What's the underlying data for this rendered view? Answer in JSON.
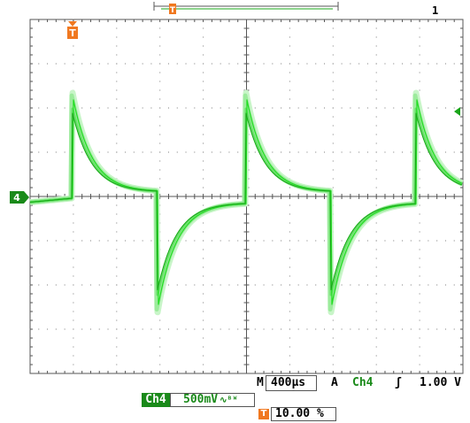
{
  "display": {
    "colors": {
      "trace": "#22dd22",
      "trace_dark": "#1aa51a",
      "grid": "#7a7a7a",
      "trigger": "#f07820",
      "badge": "#1a8a1a"
    }
  },
  "markers": {
    "channel_marker": "4",
    "trigger_marker": "T",
    "top_trigger_marker": "T",
    "top_right_marker": "1"
  },
  "readouts": {
    "timebase_prefix": "M",
    "timebase": "400µs",
    "trigger_mode": "A",
    "trigger_source": "Ch4",
    "trigger_slope": "ʃ",
    "trigger_level": "1.00 V",
    "channel_label": "Ch4",
    "channel_scale": "500mV",
    "channel_bw_icon": "∿ᴮᵂ",
    "trigger_position_icon": "T",
    "trigger_position": "10.00 %"
  }
}
